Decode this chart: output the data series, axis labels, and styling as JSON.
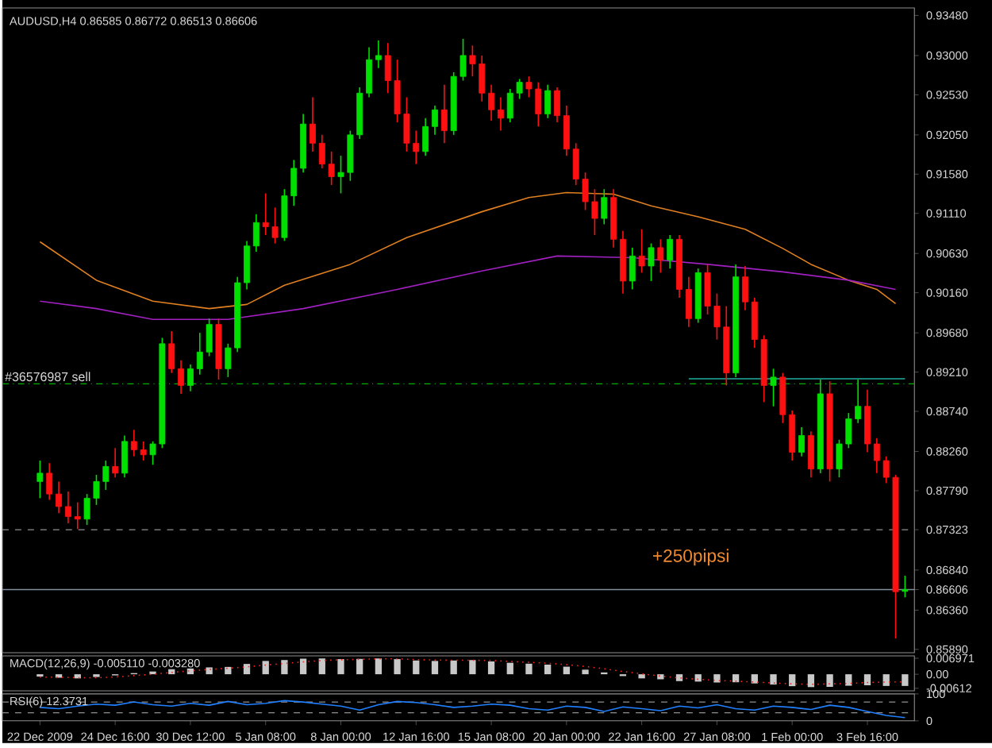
{
  "chart_data": [
    {
      "type": "candlestick",
      "title": "AUDUSD,H4  0.86585 0.86772 0.86513 0.86606",
      "categories": [
        null,
        null,
        null,
        null,
        null,
        null,
        null,
        null,
        null,
        null,
        null,
        null,
        null,
        null,
        null,
        null,
        null,
        null,
        null,
        null,
        null,
        null,
        null,
        null,
        null,
        null,
        null,
        null,
        null,
        null,
        null,
        null,
        null,
        null,
        null,
        null,
        null,
        null,
        null,
        null,
        null,
        null,
        null,
        null,
        null,
        null,
        null,
        null,
        null,
        null,
        null,
        null,
        null,
        null,
        null,
        null,
        null,
        null,
        null,
        null,
        null,
        null,
        null,
        null,
        null,
        null,
        null,
        null,
        null,
        null,
        null,
        null,
        null,
        null,
        null,
        null,
        null,
        null,
        null,
        null,
        null,
        null,
        null,
        null,
        null,
        null,
        null,
        null,
        null,
        null,
        null,
        null,
        null
      ],
      "ohlc": [
        [
          0.879,
          0.8815,
          0.877,
          0.88
        ],
        [
          0.88,
          0.8812,
          0.8768,
          0.8775
        ],
        [
          0.8775,
          0.879,
          0.8752,
          0.876
        ],
        [
          0.876,
          0.8778,
          0.874,
          0.8748
        ],
        [
          0.8748,
          0.8765,
          0.8733,
          0.8745
        ],
        [
          0.8745,
          0.8775,
          0.8738,
          0.877
        ],
        [
          0.877,
          0.8798,
          0.8762,
          0.879
        ],
        [
          0.879,
          0.8815,
          0.878,
          0.8808
        ],
        [
          0.8808,
          0.883,
          0.8795,
          0.88
        ],
        [
          0.88,
          0.8845,
          0.8795,
          0.8838
        ],
        [
          0.8838,
          0.8852,
          0.882,
          0.8828
        ],
        [
          0.8828,
          0.8838,
          0.8815,
          0.8822
        ],
        [
          0.8822,
          0.8838,
          0.881,
          0.8835
        ],
        [
          0.8835,
          0.8962,
          0.883,
          0.8955
        ],
        [
          0.8955,
          0.897,
          0.892,
          0.8925
        ],
        [
          0.8925,
          0.8935,
          0.8895,
          0.8905
        ],
        [
          0.8905,
          0.893,
          0.8898,
          0.8925
        ],
        [
          0.8925,
          0.8968,
          0.8918,
          0.8945
        ],
        [
          0.8945,
          0.8985,
          0.894,
          0.8978
        ],
        [
          0.8978,
          0.8985,
          0.8912,
          0.8925
        ],
        [
          0.8925,
          0.8955,
          0.8915,
          0.895
        ],
        [
          0.895,
          0.9035,
          0.8945,
          0.9028
        ],
        [
          0.9028,
          0.9078,
          0.902,
          0.9072
        ],
        [
          0.9072,
          0.911,
          0.9065,
          0.91
        ],
        [
          0.91,
          0.9135,
          0.9085,
          0.9095
        ],
        [
          0.9095,
          0.9118,
          0.9075,
          0.9082
        ],
        [
          0.9082,
          0.914,
          0.9078,
          0.9132
        ],
        [
          0.9132,
          0.9175,
          0.912,
          0.9165
        ],
        [
          0.9165,
          0.923,
          0.916,
          0.9218
        ],
        [
          0.9218,
          0.925,
          0.9185,
          0.9195
        ],
        [
          0.9195,
          0.9205,
          0.9165,
          0.917
        ],
        [
          0.917,
          0.9185,
          0.9145,
          0.9155
        ],
        [
          0.9155,
          0.918,
          0.9135,
          0.916
        ],
        [
          0.916,
          0.921,
          0.915,
          0.9205
        ],
        [
          0.9205,
          0.9262,
          0.92,
          0.9255
        ],
        [
          0.9255,
          0.931,
          0.925,
          0.9295
        ],
        [
          0.9295,
          0.9318,
          0.9285,
          0.93
        ],
        [
          0.93,
          0.9315,
          0.9255,
          0.927
        ],
        [
          0.927,
          0.9295,
          0.922,
          0.923
        ],
        [
          0.923,
          0.925,
          0.9185,
          0.9195
        ],
        [
          0.9195,
          0.921,
          0.917,
          0.9185
        ],
        [
          0.9185,
          0.9225,
          0.918,
          0.9215
        ],
        [
          0.9215,
          0.924,
          0.9205,
          0.9235
        ],
        [
          0.9235,
          0.9265,
          0.9195,
          0.921
        ],
        [
          0.921,
          0.928,
          0.9205,
          0.9275
        ],
        [
          0.9275,
          0.932,
          0.927,
          0.93
        ],
        [
          0.93,
          0.9312,
          0.9275,
          0.929
        ],
        [
          0.929,
          0.93,
          0.9245,
          0.9255
        ],
        [
          0.9255,
          0.9265,
          0.9222,
          0.9235
        ],
        [
          0.9235,
          0.925,
          0.921,
          0.9225
        ],
        [
          0.9225,
          0.926,
          0.922,
          0.9255
        ],
        [
          0.9255,
          0.9272,
          0.9248,
          0.9268
        ],
        [
          0.9268,
          0.9275,
          0.925,
          0.926
        ],
        [
          0.926,
          0.9268,
          0.9215,
          0.923
        ],
        [
          0.923,
          0.9265,
          0.9225,
          0.9258
        ],
        [
          0.9258,
          0.9262,
          0.922,
          0.9228
        ],
        [
          0.9228,
          0.924,
          0.918,
          0.9188
        ],
        [
          0.9188,
          0.9195,
          0.9145,
          0.9152
        ],
        [
          0.9152,
          0.916,
          0.9115,
          0.9125
        ],
        [
          0.9125,
          0.914,
          0.9085,
          0.9105
        ],
        [
          0.9105,
          0.914,
          0.9098,
          0.913
        ],
        [
          0.913,
          0.914,
          0.907,
          0.908
        ],
        [
          0.908,
          0.909,
          0.9015,
          0.903
        ],
        [
          0.903,
          0.907,
          0.902,
          0.906
        ],
        [
          0.906,
          0.9092,
          0.904,
          0.9048
        ],
        [
          0.9048,
          0.9075,
          0.903,
          0.907
        ],
        [
          0.907,
          0.908,
          0.904,
          0.9055
        ],
        [
          0.9055,
          0.9085,
          0.9045,
          0.908
        ],
        [
          0.908,
          0.9085,
          0.901,
          0.902
        ],
        [
          0.902,
          0.9035,
          0.8975,
          0.8985
        ],
        [
          0.8985,
          0.9045,
          0.898,
          0.904
        ],
        [
          0.904,
          0.905,
          0.899,
          0.9
        ],
        [
          0.9,
          0.9015,
          0.896,
          0.8975
        ],
        [
          0.8975,
          0.9,
          0.8905,
          0.892
        ],
        [
          0.892,
          0.905,
          0.8915,
          0.9035
        ],
        [
          0.9035,
          0.9048,
          0.8995,
          0.9005
        ],
        [
          0.9005,
          0.901,
          0.895,
          0.896
        ],
        [
          0.896,
          0.8965,
          0.8885,
          0.8905
        ],
        [
          0.8905,
          0.8925,
          0.888,
          0.8915
        ],
        [
          0.8915,
          0.892,
          0.886,
          0.887
        ],
        [
          0.887,
          0.8875,
          0.8815,
          0.8825
        ],
        [
          0.8825,
          0.8855,
          0.882,
          0.8845
        ],
        [
          0.8845,
          0.885,
          0.8795,
          0.8805
        ],
        [
          0.8805,
          0.8912,
          0.88,
          0.8895
        ],
        [
          0.8895,
          0.891,
          0.879,
          0.8805
        ],
        [
          0.8805,
          0.884,
          0.8795,
          0.8835
        ],
        [
          0.8835,
          0.8872,
          0.883,
          0.8865
        ],
        [
          0.8865,
          0.8912,
          0.886,
          0.888
        ],
        [
          0.888,
          0.89,
          0.8825,
          0.8835
        ],
        [
          0.8835,
          0.8842,
          0.88,
          0.8815
        ],
        [
          0.8815,
          0.882,
          0.8788,
          0.8795
        ],
        [
          0.8795,
          0.8798,
          0.8602,
          0.8658
        ],
        [
          0.86585,
          0.86772,
          0.86513,
          0.86606
        ]
      ],
      "colors": [
        "#00e000",
        "#ff1010",
        "#ff1010",
        "#ff1010",
        "#ff1010",
        "#00e000",
        "#00e000",
        "#00e000",
        "#ff1010",
        "#00e000",
        "#ff1010",
        "#ff1010",
        "#00e000",
        "#00e000",
        "#ff1010",
        "#ff1010",
        "#00e000",
        "#00e000",
        "#00e000",
        "#ff1010",
        "#00e000",
        "#00e000",
        "#00e000",
        "#00e000",
        "#ff1010",
        "#ff1010",
        "#00e000",
        "#00e000",
        "#00e000",
        "#ff1010",
        "#ff1010",
        "#ff1010",
        "#00e000",
        "#00e000",
        "#00e000",
        "#00e000",
        "#00e000",
        "#ff1010",
        "#ff1010",
        "#ff1010",
        "#ff1010",
        "#00e000",
        "#00e000",
        "#ff1010",
        "#00e000",
        "#00e000",
        "#ff1010",
        "#ff1010",
        "#ff1010",
        "#ff1010",
        "#00e000",
        "#00e000",
        "#ff1010",
        "#ff1010",
        "#00e000",
        "#ff1010",
        "#ff1010",
        "#ff1010",
        "#ff1010",
        "#ff1010",
        "#00e000",
        "#ff1010",
        "#ff1010",
        "#00e000",
        "#ff1010",
        "#00e000",
        "#ff1010",
        "#00e000",
        "#ff1010",
        "#ff1010",
        "#00e000",
        "#ff1010",
        "#ff1010",
        "#ff1010",
        "#00e000",
        "#ff1010",
        "#ff1010",
        "#ff1010",
        "#00e000",
        "#ff1010",
        "#ff1010",
        "#00e000",
        "#ff1010",
        "#00e000",
        "#ff1010",
        "#00e000",
        "#00e000",
        "#00e000",
        "#ff1010",
        "#ff1010",
        "#ff1010",
        "#ff1010",
        "#00e000"
      ],
      "series": [
        {
          "type": "line",
          "color": "#e08020",
          "values": [
            0.9077,
            null,
            null,
            null,
            null,
            null,
            0.9031,
            null,
            null,
            null,
            null,
            null,
            0.9006,
            null,
            null,
            null,
            null,
            null,
            0.8997,
            null,
            null,
            null,
            0.9002,
            null,
            null,
            null,
            0.9025,
            null,
            null,
            null,
            null,
            null,
            null,
            0.905,
            null,
            null,
            null,
            null,
            null,
            0.9082,
            null,
            null,
            null,
            null,
            null,
            null,
            null,
            0.9113,
            null,
            null,
            null,
            null,
            0.913,
            null,
            null,
            null,
            0.9136,
            null,
            null,
            null,
            null,
            0.9134,
            null,
            null,
            null,
            0.912,
            null,
            null,
            null,
            null,
            0.9107,
            null,
            null,
            null,
            null,
            0.9092,
            null,
            null,
            null,
            0.9069,
            null,
            null,
            0.905,
            null,
            null,
            null,
            0.9031,
            null,
            null,
            0.902,
            null,
            0.9003,
            null
          ]
        },
        {
          "type": "line",
          "color": "#a020c0",
          "values": [
            0.9006,
            null,
            null,
            null,
            null,
            null,
            0.8997,
            null,
            null,
            null,
            null,
            null,
            0.8984,
            null,
            null,
            null,
            null,
            null,
            null,
            null,
            0.8984,
            null,
            null,
            null,
            null,
            null,
            null,
            null,
            0.8997,
            null,
            null,
            null,
            null,
            null,
            null,
            null,
            null,
            null,
            0.902,
            null,
            null,
            null,
            null,
            null,
            null,
            null,
            null,
            0.9042,
            null,
            null,
            null,
            null,
            null,
            null,
            null,
            0.906,
            null,
            null,
            null,
            null,
            null,
            null,
            null,
            0.9058,
            null,
            null,
            null,
            null,
            null,
            null,
            null,
            0.905,
            null,
            null,
            null,
            null,
            null,
            null,
            null,
            0.9041,
            null,
            null,
            null,
            null,
            null,
            null,
            0.9031,
            null,
            null,
            null,
            null,
            0.902,
            null
          ]
        },
        {
          "type": "line",
          "color": "#20b0a0",
          "values": [
            null,
            null,
            null,
            null,
            null,
            null,
            null,
            null,
            null,
            null,
            null,
            null,
            null,
            null,
            null,
            null,
            null,
            null,
            null,
            null,
            null,
            null,
            null,
            null,
            null,
            null,
            null,
            null,
            null,
            null,
            null,
            null,
            null,
            null,
            null,
            null,
            null,
            null,
            null,
            null,
            null,
            null,
            null,
            null,
            null,
            null,
            null,
            null,
            null,
            null,
            null,
            null,
            null,
            null,
            null,
            null,
            null,
            null,
            null,
            null,
            null,
            null,
            null,
            null,
            null,
            null,
            null,
            null,
            null,
            0.8913,
            null,
            null,
            null,
            null,
            null,
            null,
            null,
            null,
            null,
            null,
            null,
            null,
            null,
            null,
            null,
            null,
            null,
            null,
            null,
            null,
            null,
            null,
            0.8913
          ]
        }
      ],
      "ylim": [
        0.8585,
        0.9357
      ],
      "yticks": [
        {
          "value": 0.9348,
          "label": "0.93480"
        },
        {
          "value": 0.93,
          "label": "0.93000"
        },
        {
          "value": 0.9253,
          "label": "0.92530"
        },
        {
          "value": 0.9205,
          "label": "0.92050"
        },
        {
          "value": 0.9158,
          "label": "0.91580"
        },
        {
          "value": 0.9111,
          "label": "0.91110"
        },
        {
          "value": 0.9063,
          "label": "0.90630"
        },
        {
          "value": 0.9016,
          "label": "0.90160"
        },
        {
          "value": 0.8968,
          "label": "0.89680"
        },
        {
          "value": 0.8921,
          "label": "0.89210"
        },
        {
          "value": 0.8874,
          "label": "0.88740"
        },
        {
          "value": 0.8826,
          "label": "0.88260"
        },
        {
          "value": 0.8779,
          "label": "0.87790"
        },
        0.87323,
        {
          "value": 0.8684,
          "label": "0.86840"
        },
        0.86606,
        {
          "value": 0.8636,
          "label": "0.86360"
        },
        {
          "value": 0.8589,
          "label": "0.85890"
        }
      ],
      "ref_lines": [
        {
          "axis": "y",
          "value": 0.8907,
          "label": "#36576987 sell",
          "color": "#00b000",
          "line_style": "dashdot"
        },
        {
          "axis": "y",
          "value": 0.87323,
          "color": "#909090",
          "line_style": "dashed"
        },
        {
          "axis": "y",
          "value": 0.86606,
          "color": "#8090a0",
          "line_style": "solid"
        }
      ],
      "annotations": [
        "+250pipsi"
      ],
      "tick_labels": "y"
    },
    {
      "type": "bar",
      "title": "MACD(12,26,9) -0.005110 -0.003280",
      "categories": [
        null,
        null,
        null,
        null,
        null,
        null,
        null,
        null,
        null,
        null,
        null,
        null,
        null,
        null,
        null,
        null,
        null,
        null,
        null,
        null,
        null,
        null,
        null,
        null,
        null,
        null,
        null,
        null,
        null,
        null,
        null,
        null,
        null,
        null,
        null,
        null,
        null,
        null,
        null,
        null,
        null,
        null,
        null,
        null,
        null,
        null,
        null
      ],
      "series": [
        {
          "type": "bar",
          "color": "#c8c8c8",
          "values": [
            -0.001,
            -0.0015,
            -0.0018,
            -0.0012,
            -0.0005,
            0.0005,
            0.0012,
            0.0022,
            0.0025,
            0.003,
            0.0032,
            0.0045,
            0.0058,
            0.0062,
            0.0068,
            0.0069,
            0.0066,
            0.0067,
            0.0069,
            0.0066,
            0.006,
            0.0058,
            0.006,
            0.0062,
            0.0056,
            0.005,
            0.0046,
            0.0042,
            0.0033,
            0.002,
            0.0008,
            -0.0008,
            -0.0018,
            -0.0022,
            -0.003,
            -0.0032,
            -0.0036,
            -0.0035,
            -0.004,
            -0.0045,
            -0.0052,
            -0.0056,
            -0.0055,
            -0.005,
            -0.0048,
            -0.0051,
            -0.0051
          ]
        },
        {
          "type": "line",
          "color": "#ff2020",
          "line_style": "dotted",
          "values": [
            -0.0012,
            -0.0013,
            -0.0015,
            -0.0015,
            -0.0012,
            -0.0006,
            0,
            0.0008,
            0.0015,
            0.0021,
            0.0026,
            0.0032,
            0.004,
            0.0047,
            0.0054,
            0.006,
            0.0063,
            0.0065,
            0.0067,
            0.0067,
            0.0064,
            0.0062,
            0.0061,
            0.0061,
            0.006,
            0.0056,
            0.0052,
            0.0048,
            0.0042,
            0.0034,
            0.0024,
            0.0012,
            0.0002,
            -0.0008,
            -0.0016,
            -0.0022,
            -0.0027,
            -0.003,
            -0.0034,
            -0.0038,
            -0.0042,
            -0.0044,
            -0.0042,
            -0.004,
            -0.0036,
            -0.0034,
            -0.0033
          ]
        }
      ],
      "ylim": [
        -0.0072,
        0.008
      ],
      "yticks": [
        {
          "value": 0.006971,
          "label": "0.006971"
        },
        {
          "value": 0,
          "label": "0.00"
        },
        {
          "value": -0.00612,
          "label": "-0.00612"
        }
      ],
      "tick_labels": "y"
    },
    {
      "type": "line",
      "title": "RSI(6) 12.3731",
      "categories": [
        "22 Dec 2009",
        null,
        null,
        null,
        "24 Dec 16:00",
        null,
        null,
        null,
        "30 Dec 12:00",
        null,
        null,
        null,
        "5 Jan 08:00",
        null,
        null,
        null,
        "8 Jan 00:00",
        null,
        null,
        null,
        "12 Jan 16:00",
        null,
        null,
        null,
        "15 Jan 08:00",
        null,
        null,
        null,
        "20 Jan 00:00",
        null,
        null,
        null,
        "22 Jan 16:00",
        null,
        null,
        null,
        "27 Jan 08:00",
        null,
        null,
        null,
        "1 Feb 00:00",
        null,
        null,
        null,
        "3 Feb 16:00",
        null,
        null
      ],
      "series": [
        {
          "color": "#2080ff",
          "values": [
            50,
            45,
            55,
            62,
            58,
            70,
            60,
            55,
            65,
            58,
            72,
            60,
            65,
            75,
            70,
            62,
            55,
            40,
            60,
            72,
            68,
            60,
            50,
            55,
            62,
            58,
            45,
            40,
            55,
            50,
            35,
            52,
            45,
            38,
            55,
            48,
            60,
            45,
            40,
            55,
            50,
            42,
            58,
            50,
            35,
            20,
            12
          ]
        }
      ],
      "ylim": [
        0,
        100
      ],
      "yticks": [
        0,
        100
      ],
      "ref_lines": [
        {
          "axis": "y",
          "value": 70,
          "color": "#909090",
          "line_style": "dashed"
        },
        {
          "axis": "y",
          "value": 30,
          "color": "#909090",
          "line_style": "dashed"
        }
      ]
    }
  ]
}
